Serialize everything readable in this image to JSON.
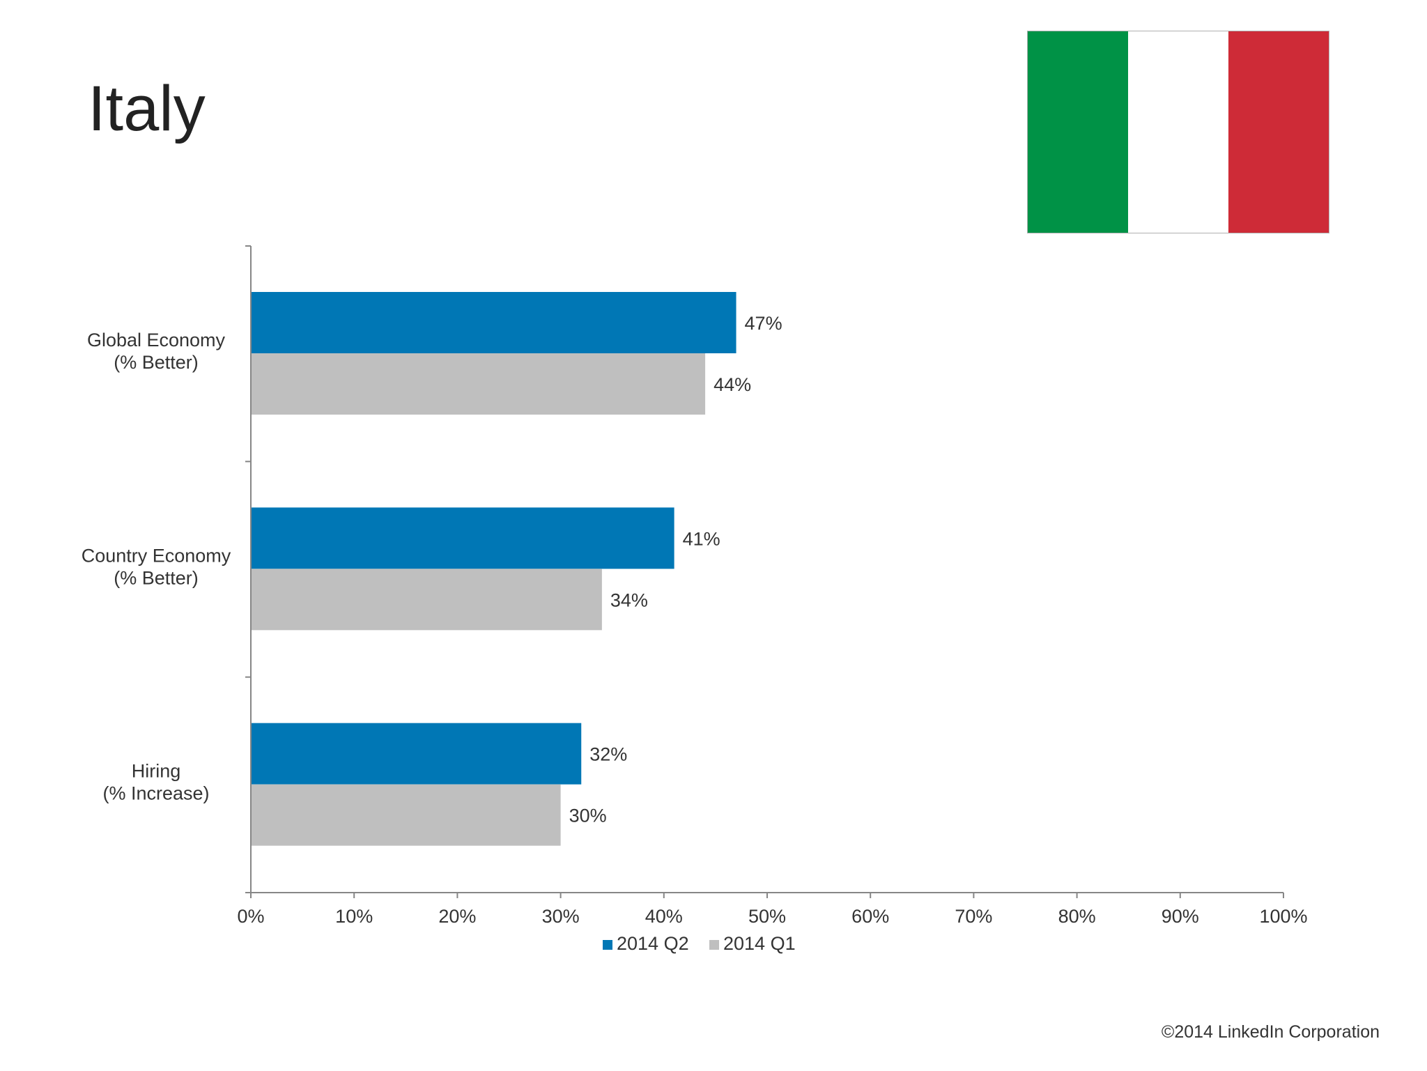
{
  "page": {
    "title": "Italy",
    "copyright": "©2014 LinkedIn Corporation"
  },
  "flag": {
    "colors": [
      "#009246",
      "#ffffff",
      "#ce2b37"
    ]
  },
  "chart_data": {
    "type": "bar",
    "orientation": "horizontal",
    "categories": [
      [
        "Global Economy",
        "(% Better)"
      ],
      [
        "Country Economy",
        "(% Better)"
      ],
      [
        "Hiring",
        "(% Increase)"
      ]
    ],
    "series": [
      {
        "name": "2014 Q2",
        "color": "#0077b5",
        "values": [
          47,
          41,
          32
        ],
        "labels": [
          "47%",
          "41%",
          "32%"
        ]
      },
      {
        "name": "2014 Q1",
        "color": "#bfbfbf",
        "values": [
          44,
          34,
          30
        ],
        "labels": [
          "44%",
          "34%",
          "30%"
        ]
      }
    ],
    "x_ticks": [
      "0%",
      "10%",
      "20%",
      "30%",
      "40%",
      "50%",
      "60%",
      "70%",
      "80%",
      "90%",
      "100%"
    ],
    "xlim": [
      0,
      100
    ],
    "grid": false,
    "legend": "bottom"
  }
}
